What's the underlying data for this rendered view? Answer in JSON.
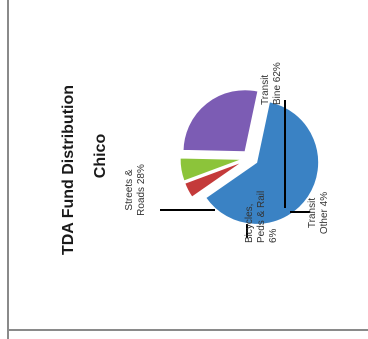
{
  "chart_data": {
    "type": "pie",
    "title": "TDA Fund Distribution",
    "subtitle": "Chico",
    "slices": [
      {
        "label_lines": [
          "Transit",
          "Bine 62%"
        ],
        "name": "Transit Bine",
        "value": 62,
        "color": "#3a82c4"
      },
      {
        "label_lines": [
          "Transit",
          "Other 4%"
        ],
        "name": "Transit Other",
        "value": 4,
        "color": "#c43a3a"
      },
      {
        "label_lines": [
          "Bicycles,",
          "Peds & Rail",
          "6%"
        ],
        "name": "Bicycles, Peds & Rail",
        "value": 6,
        "color": "#8cc43a"
      },
      {
        "label_lines": [
          "Streets &",
          "Roads 28%"
        ],
        "name": "Streets & Roads",
        "value": 28,
        "color": "#7c5cb4"
      }
    ]
  }
}
